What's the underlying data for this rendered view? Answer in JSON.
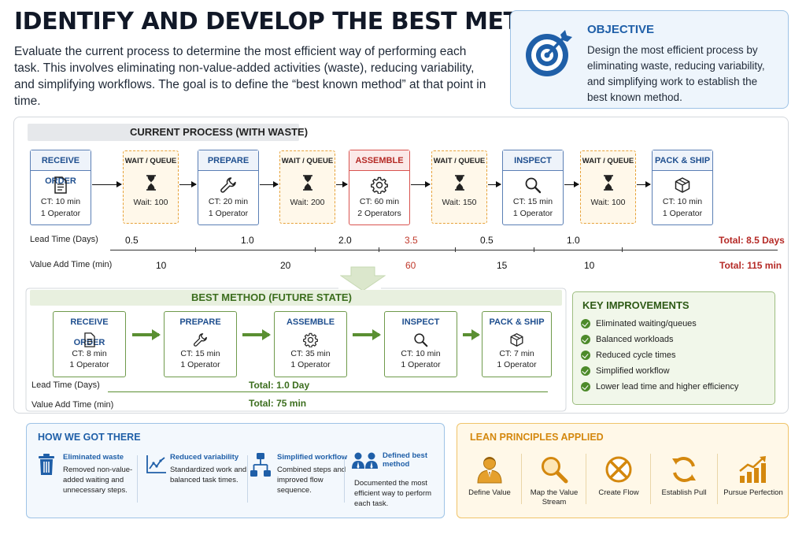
{
  "header": {
    "title": "IDENTIFY AND DEVELOP THE BEST METHOD",
    "intro": "Evaluate the current process to determine the most efficient way of performing each task. This involves eliminating non-value-added activities (waste), reducing variability, and simplifying workflows. The goal is to define the “best known method” at that point in time."
  },
  "objective": {
    "heading": "OBJECTIVE",
    "text": "Design the most efficient process by eliminating waste, reducing variability, and simplifying work to establish the best known method.",
    "icon": "target-icon"
  },
  "current": {
    "banner": "CURRENT PROCESS (WITH WASTE)",
    "steps": [
      {
        "title": "RECEIVE ORDER",
        "ct": "CT: 10 min",
        "ops": "1 Operator",
        "icon": "document-icon"
      },
      {
        "title": "PREPARE",
        "ct": "CT: 20 min",
        "ops": "1 Operator",
        "icon": "wrench-icon"
      },
      {
        "title": "ASSEMBLE",
        "ct": "CT: 60 min",
        "ops": "2 Operators",
        "icon": "gear-icon",
        "highlight": "#d9534f"
      },
      {
        "title": "INSPECT",
        "ct": "CT: 15 min",
        "ops": "1 Operator",
        "icon": "magnifier-icon"
      },
      {
        "title": "PACK & SHIP",
        "ct": "CT: 10 min",
        "ops": "1 Operator",
        "icon": "box-icon"
      }
    ],
    "waits": [
      {
        "title": "WAIT / QUEUE",
        "value": "Wait: 100"
      },
      {
        "title": "WAIT / QUEUE",
        "value": "Wait: 200"
      },
      {
        "title": "WAIT / QUEUE",
        "value": "Wait: 150"
      },
      {
        "title": "WAIT / QUEUE",
        "value": "Wait: 100"
      }
    ],
    "lead_time": {
      "label": "Lead Time (Days)",
      "values": [
        "0.5",
        "1.0",
        "2.0",
        "3.5",
        "0.5",
        "1.0"
      ],
      "total": "Total: 8.5 Days"
    },
    "value_add": {
      "label": "Value Add Time (min)",
      "values": [
        "10",
        "20",
        "60",
        "15",
        "10"
      ],
      "total": "Total: 115 min"
    }
  },
  "future": {
    "banner": "BEST METHOD (FUTURE STATE)",
    "steps": [
      {
        "title": "RECEIVE ORDER",
        "ct": "CT: 8 min",
        "ops": "1 Operator",
        "icon": "document-icon"
      },
      {
        "title": "PREPARE",
        "ct": "CT: 15 min",
        "ops": "1 Operator",
        "icon": "wrench-icon"
      },
      {
        "title": "ASSEMBLE",
        "ct": "CT: 35 min",
        "ops": "1 Operator",
        "icon": "gear-icon"
      },
      {
        "title": "INSPECT",
        "ct": "CT: 10 min",
        "ops": "1 Operator",
        "icon": "magnifier-icon"
      },
      {
        "title": "PACK & SHIP",
        "ct": "CT: 7 min",
        "ops": "1 Operator",
        "icon": "box-icon"
      }
    ],
    "lead_time": {
      "label": "Lead Time (Days)",
      "total": "Total: 1.0 Day"
    },
    "value_add": {
      "label": "Value Add Time (min)",
      "total": "Total: 75 min"
    }
  },
  "improvements": {
    "heading": "KEY IMPROVEMENTS",
    "items": [
      "Eliminated waiting/queues",
      "Balanced workloads",
      "Reduced cycle times",
      "Simplified workflow",
      "Lower lead time and higher efficiency"
    ]
  },
  "how": {
    "heading": "HOW WE GOT THERE",
    "items": [
      {
        "title": "Eliminated waste",
        "text": "Removed non-value-added waiting and unnecessary steps.",
        "icon": "trash-icon"
      },
      {
        "title": "Reduced variability",
        "text": "Standardized work and balanced task times.",
        "icon": "trend-chart-icon"
      },
      {
        "title": "Simplified workflow",
        "text": "Combined steps and improved flow sequence.",
        "icon": "flowchart-icon"
      },
      {
        "title": "Defined best method",
        "text": "Documented the most efficient way to perform each task.",
        "icon": "team-icon"
      }
    ]
  },
  "lean": {
    "heading": "LEAN PRINCIPLES APPLIED",
    "items": [
      {
        "label": "Define Value",
        "icon": "person-icon"
      },
      {
        "label": "Map the Value Stream",
        "icon": "magnifier-icon"
      },
      {
        "label": "Create Flow",
        "icon": "no-waste-icon"
      },
      {
        "label": "Establish Pull",
        "icon": "cycle-icon"
      },
      {
        "label": "Pursue Perfection",
        "icon": "growth-icon"
      }
    ]
  },
  "colors": {
    "blue": "#1f5fa8",
    "green": "#3c6e1e",
    "red": "#b52a26",
    "orange": "#d4880e"
  }
}
